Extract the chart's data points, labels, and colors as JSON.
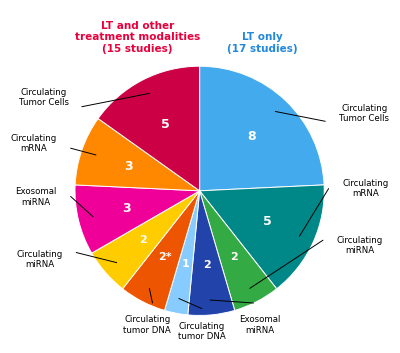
{
  "title_left": "LT and other\ntreatment modalities\n(15 studies)",
  "title_right": "LT only\n(17 studies)",
  "title_left_color": "#E8003C",
  "title_right_color": "#2288DD",
  "slices": [
    {
      "label": "Circulating\nTumor Cells",
      "value": 8,
      "color": "#44AAEE",
      "side": "right"
    },
    {
      "label": "Circulating\nmRNA",
      "value": 5,
      "color": "#008888",
      "side": "right"
    },
    {
      "label": "Circulating\nmiRNA",
      "value": 2,
      "color": "#33AA44",
      "side": "right"
    },
    {
      "label": "Exosomal\nmiRNA",
      "value": 2,
      "color": "#2244AA",
      "side": "right"
    },
    {
      "label": "Circulating\ntumor DNA",
      "value": 1,
      "color": "#88CCFF",
      "side": "right"
    },
    {
      "label": "Circulating\ntumor DNA",
      "value": 2,
      "color": "#EE5500",
      "side": "left"
    },
    {
      "label": "Circulating\nmiRNA",
      "value": 2,
      "color": "#FFCC00",
      "side": "left"
    },
    {
      "label": "Exosomal\nmiRNA",
      "value": 3,
      "color": "#EE0099",
      "side": "left"
    },
    {
      "label": "Circulating\nmRNA",
      "value": 3,
      "color": "#FF8800",
      "side": "left"
    },
    {
      "label": "Circulating\nTumor Cells",
      "value": 5,
      "color": "#CC0044",
      "side": "left"
    }
  ],
  "number_labels": [
    "8",
    "5",
    "2",
    "2",
    "1",
    "2*",
    "2",
    "3",
    "3",
    "5"
  ],
  "background_color": "#FFFFFF"
}
